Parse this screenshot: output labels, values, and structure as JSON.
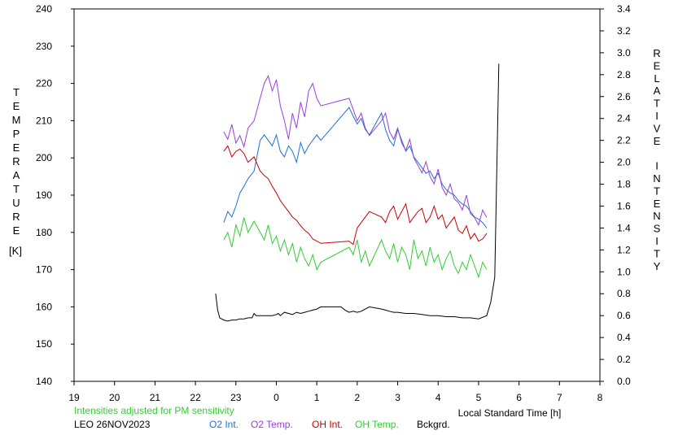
{
  "chart_data": {
    "type": "line",
    "station": "LEO 26NOV2023",
    "note": "Intensities adjusted for PM sensitivity",
    "xlabel": "Local Standard Time [h]",
    "ylabel_left": "TEMPERATURE",
    "ylabel_left_unit": "[K]",
    "ylabel_right": "RELATIVE INTENSITY",
    "xlim": [
      19,
      32
    ],
    "x_ticks": [
      "19",
      "20",
      "21",
      "22",
      "23",
      "0",
      "1",
      "2",
      "3",
      "4",
      "5",
      "6",
      "7",
      "8"
    ],
    "ylim_left": [
      140,
      240
    ],
    "y_ticks_left": [
      "140",
      "150",
      "160",
      "170",
      "180",
      "190",
      "200",
      "210",
      "220",
      "230",
      "240"
    ],
    "ylim_right": [
      0,
      3.4
    ],
    "y_ticks_right": [
      "0.0",
      "0.2",
      "0.4",
      "0.6",
      "0.8",
      "1.0",
      "1.2",
      "1.4",
      "1.6",
      "1.8",
      "2.0",
      "2.2",
      "2.4",
      "2.6",
      "2.8",
      "3.0",
      "3.2",
      "3.4"
    ],
    "grid": false,
    "legend_position": "bottom",
    "series": [
      {
        "name": "O2 Int.",
        "color": "#1e6fd9",
        "axis": "right",
        "x": [
          22.7,
          22.8,
          22.9,
          23.0,
          23.1,
          23.2,
          23.3,
          23.45,
          23.6,
          23.7,
          23.8,
          23.9,
          24.0,
          24.1,
          24.2,
          24.3,
          24.4,
          24.5,
          24.6,
          24.7,
          24.8,
          24.9,
          25.0,
          25.1,
          25.8,
          25.9,
          26.0,
          26.1,
          26.2,
          26.3,
          26.6,
          26.7,
          26.8,
          26.9,
          27.0,
          27.1,
          27.2,
          27.3,
          27.4,
          27.5,
          27.6,
          27.7,
          27.8,
          27.9,
          28.0,
          28.1,
          28.2,
          28.3,
          28.4,
          28.5,
          28.6,
          28.7,
          28.8,
          28.9,
          29.0,
          29.1,
          29.2
        ],
        "y": [
          1.45,
          1.55,
          1.5,
          1.6,
          1.72,
          1.78,
          1.85,
          1.92,
          2.2,
          2.25,
          2.2,
          2.15,
          2.25,
          2.1,
          2.05,
          2.15,
          2.1,
          2.0,
          2.18,
          2.08,
          2.15,
          2.2,
          2.25,
          2.2,
          2.5,
          2.42,
          2.35,
          2.4,
          2.3,
          2.25,
          2.45,
          2.3,
          2.2,
          2.15,
          2.3,
          2.2,
          2.1,
          2.15,
          2.05,
          2.0,
          1.95,
          1.9,
          1.92,
          1.85,
          1.9,
          1.8,
          1.75,
          1.72,
          1.7,
          1.65,
          1.62,
          1.6,
          1.55,
          1.5,
          1.48,
          1.45,
          1.4
        ]
      },
      {
        "name": "O2 Temp.",
        "color": "#9b3fd6",
        "axis": "left",
        "x": [
          22.7,
          22.8,
          22.9,
          23.0,
          23.1,
          23.2,
          23.3,
          23.45,
          23.6,
          23.7,
          23.8,
          23.9,
          24.0,
          24.1,
          24.2,
          24.3,
          24.4,
          24.5,
          24.6,
          24.7,
          24.8,
          24.9,
          25.0,
          25.1,
          25.8,
          25.9,
          26.0,
          26.1,
          26.2,
          26.3,
          26.6,
          26.7,
          26.8,
          26.9,
          27.0,
          27.1,
          27.2,
          27.3,
          27.4,
          27.5,
          27.6,
          27.7,
          27.8,
          27.9,
          28.0,
          28.1,
          28.2,
          28.3,
          28.4,
          28.5,
          28.6,
          28.7,
          28.8,
          28.9,
          29.0,
          29.1,
          29.2
        ],
        "y": [
          207,
          205,
          209,
          204,
          206,
          203,
          208,
          210,
          216,
          220,
          222,
          218,
          221,
          214,
          210,
          205,
          212,
          208,
          215,
          211,
          218,
          220,
          216,
          214,
          216,
          213,
          210,
          212,
          208,
          206,
          210,
          212,
          207,
          205,
          208,
          204,
          202,
          205,
          200,
          198,
          196,
          199,
          195,
          193,
          197,
          192,
          190,
          193,
          189,
          188,
          186,
          190,
          185,
          184,
          182,
          186,
          184
        ]
      },
      {
        "name": "OH Int.",
        "color": "#cc0000",
        "axis": "right",
        "x": [
          22.7,
          22.8,
          22.9,
          23.0,
          23.1,
          23.2,
          23.3,
          23.45,
          23.6,
          23.7,
          23.8,
          23.9,
          24.0,
          24.1,
          24.2,
          24.3,
          24.4,
          24.5,
          24.6,
          24.7,
          24.8,
          24.9,
          25.0,
          25.1,
          25.8,
          25.9,
          26.0,
          26.1,
          26.2,
          26.3,
          26.6,
          26.7,
          26.8,
          26.9,
          27.0,
          27.1,
          27.2,
          27.3,
          27.4,
          27.5,
          27.6,
          27.7,
          27.8,
          27.9,
          28.0,
          28.1,
          28.2,
          28.3,
          28.4,
          28.5,
          28.6,
          28.7,
          28.8,
          28.9,
          29.0,
          29.1,
          29.2
        ],
        "y": [
          2.1,
          2.15,
          2.05,
          2.1,
          2.12,
          2.08,
          2.0,
          2.05,
          1.92,
          1.88,
          1.85,
          1.78,
          1.72,
          1.65,
          1.6,
          1.55,
          1.5,
          1.47,
          1.42,
          1.38,
          1.35,
          1.3,
          1.28,
          1.26,
          1.28,
          1.25,
          1.4,
          1.45,
          1.5,
          1.55,
          1.5,
          1.45,
          1.55,
          1.6,
          1.48,
          1.55,
          1.62,
          1.45,
          1.5,
          1.55,
          1.58,
          1.45,
          1.5,
          1.6,
          1.48,
          1.52,
          1.4,
          1.45,
          1.5,
          1.38,
          1.35,
          1.42,
          1.3,
          1.35,
          1.28,
          1.3,
          1.35
        ]
      },
      {
        "name": "OH Temp.",
        "color": "#33cc33",
        "axis": "left",
        "x": [
          22.7,
          22.8,
          22.9,
          23.0,
          23.1,
          23.2,
          23.3,
          23.45,
          23.6,
          23.7,
          23.8,
          23.9,
          24.0,
          24.1,
          24.2,
          24.3,
          24.4,
          24.5,
          24.6,
          24.7,
          24.8,
          24.9,
          25.0,
          25.1,
          25.8,
          25.9,
          26.0,
          26.1,
          26.2,
          26.3,
          26.6,
          26.7,
          26.8,
          26.9,
          27.0,
          27.1,
          27.2,
          27.3,
          27.4,
          27.5,
          27.6,
          27.7,
          27.8,
          27.9,
          28.0,
          28.1,
          28.2,
          28.3,
          28.4,
          28.5,
          28.6,
          28.7,
          28.8,
          28.9,
          29.0,
          29.1,
          29.2
        ],
        "y": [
          178,
          180,
          176,
          182,
          179,
          184,
          180,
          183,
          180,
          178,
          182,
          177,
          179,
          175,
          178,
          174,
          177,
          172,
          176,
          173,
          171,
          174,
          170,
          172,
          176,
          174,
          178,
          172,
          175,
          171,
          178,
          175,
          173,
          177,
          172,
          176,
          174,
          170,
          178,
          173,
          175,
          171,
          176,
          172,
          174,
          170,
          173,
          175,
          171,
          169,
          172,
          170,
          174,
          171,
          168,
          172,
          170
        ]
      },
      {
        "name": "Bckgrd.",
        "color": "#000000",
        "axis": "right",
        "x": [
          22.5,
          22.55,
          22.6,
          22.7,
          22.8,
          22.9,
          23.0,
          23.1,
          23.2,
          23.3,
          23.4,
          23.45,
          23.5,
          23.9,
          24.0,
          24.05,
          24.1,
          24.2,
          24.3,
          24.4,
          24.5,
          24.6,
          24.7,
          24.8,
          24.9,
          25.0,
          25.1,
          25.6,
          25.7,
          25.8,
          25.9,
          26.0,
          26.1,
          26.2,
          26.3,
          26.6,
          26.7,
          26.8,
          26.9,
          27.0,
          27.2,
          27.4,
          27.6,
          27.8,
          28.0,
          28.2,
          28.4,
          28.6,
          28.8,
          29.0,
          29.2,
          29.3,
          29.4,
          29.5
        ],
        "y": [
          0.8,
          0.65,
          0.58,
          0.56,
          0.55,
          0.56,
          0.56,
          0.57,
          0.57,
          0.58,
          0.58,
          0.62,
          0.6,
          0.6,
          0.61,
          0.62,
          0.6,
          0.63,
          0.62,
          0.61,
          0.63,
          0.62,
          0.63,
          0.64,
          0.65,
          0.66,
          0.68,
          0.68,
          0.65,
          0.63,
          0.64,
          0.63,
          0.64,
          0.66,
          0.68,
          0.66,
          0.65,
          0.64,
          0.63,
          0.63,
          0.62,
          0.62,
          0.61,
          0.6,
          0.6,
          0.59,
          0.59,
          0.58,
          0.58,
          0.57,
          0.6,
          0.72,
          0.95,
          2.9
        ]
      }
    ],
    "legend": [
      {
        "label": "O2 Int.",
        "color": "#1e6fd9"
      },
      {
        "label": "O2 Temp.",
        "color": "#9b3fd6"
      },
      {
        "label": "OH Int.",
        "color": "#cc0000"
      },
      {
        "label": "OH Temp.",
        "color": "#33cc33"
      },
      {
        "label": "Bckgrd.",
        "color": "#000000"
      }
    ],
    "note_color": "#33cc33"
  }
}
